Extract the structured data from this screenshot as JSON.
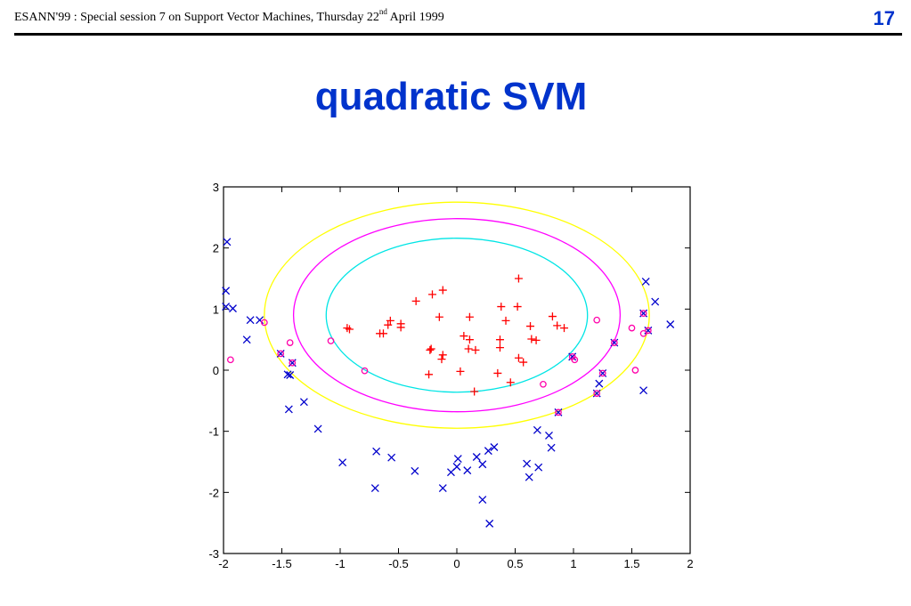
{
  "header": {
    "text_before_sup": "ESANN'99 :  Special session 7 on Support Vector Machines, Thursday 22",
    "sup": "nd",
    "text_after_sup": " April 1999",
    "page_number": "17"
  },
  "slide": {
    "title": "quadratic SVM"
  },
  "colors": {
    "title": "#0033cc",
    "class_pos": "#ff0000",
    "class_neg": "#0000cc",
    "support_vector": "#ff00aa",
    "contour_outer": "#ffff00",
    "contour_middle": "#ff00ff",
    "contour_inner": "#00e5e5"
  },
  "chart_data": {
    "type": "scatter",
    "title": "",
    "xlabel": "",
    "ylabel": "",
    "xlim": [
      -2,
      2
    ],
    "ylim": [
      -3,
      3
    ],
    "xticks": [
      -2,
      -1.5,
      -1,
      -0.5,
      0,
      0.5,
      1,
      1.5,
      2
    ],
    "xtick_labels": [
      "-2",
      "-1.5",
      "-1",
      "-0.5",
      "0",
      "0.5",
      "1",
      "1.5",
      "2"
    ],
    "yticks": [
      -3,
      -2,
      -1,
      0,
      1,
      2,
      3
    ],
    "ytick_labels": [
      "-3",
      "-2",
      "-1",
      "0",
      "1",
      "2",
      "3"
    ],
    "grid": false,
    "series": [
      {
        "marker": "plus",
        "color": "#ff0000",
        "points": [
          [
            0.53,
            1.5
          ],
          [
            -0.12,
            1.31
          ],
          [
            -0.21,
            1.24
          ],
          [
            -0.35,
            1.13
          ],
          [
            0.38,
            1.04
          ],
          [
            0.52,
            1.04
          ],
          [
            -0.15,
            0.87
          ],
          [
            0.11,
            0.87
          ],
          [
            0.42,
            0.81
          ],
          [
            0.82,
            0.88
          ],
          [
            -0.57,
            0.81
          ],
          [
            -0.48,
            0.76
          ],
          [
            -0.59,
            0.74
          ],
          [
            -0.48,
            0.7
          ],
          [
            -0.94,
            0.69
          ],
          [
            -0.92,
            0.67
          ],
          [
            0.63,
            0.72
          ],
          [
            0.86,
            0.73
          ],
          [
            0.92,
            0.69
          ],
          [
            -0.66,
            0.6
          ],
          [
            -0.63,
            0.6
          ],
          [
            0.06,
            0.56
          ],
          [
            0.11,
            0.5
          ],
          [
            0.37,
            0.5
          ],
          [
            0.64,
            0.51
          ],
          [
            0.68,
            0.49
          ],
          [
            -0.23,
            0.33
          ],
          [
            -0.22,
            0.35
          ],
          [
            0.1,
            0.35
          ],
          [
            0.16,
            0.33
          ],
          [
            0.37,
            0.37
          ],
          [
            -0.12,
            0.25
          ],
          [
            -0.13,
            0.18
          ],
          [
            0.53,
            0.2
          ],
          [
            0.57,
            0.13
          ],
          [
            0.03,
            -0.02
          ],
          [
            0.35,
            -0.05
          ],
          [
            -0.24,
            -0.07
          ],
          [
            0.46,
            -0.2
          ],
          [
            0.15,
            -0.35
          ]
        ]
      },
      {
        "marker": "x",
        "color": "#0000cc",
        "points": [
          [
            -1.97,
            2.1
          ],
          [
            -1.98,
            1.3
          ],
          [
            -1.98,
            1.04
          ],
          [
            -1.92,
            1.01
          ],
          [
            -1.77,
            0.82
          ],
          [
            -1.69,
            0.82
          ],
          [
            -1.8,
            0.5
          ],
          [
            -1.51,
            0.27
          ],
          [
            -1.45,
            -0.07
          ],
          [
            -1.43,
            -0.08
          ],
          [
            -1.41,
            0.12
          ],
          [
            -1.44,
            -0.64
          ],
          [
            -1.31,
            -0.52
          ],
          [
            -1.19,
            -0.96
          ],
          [
            -0.98,
            -1.51
          ],
          [
            -0.69,
            -1.33
          ],
          [
            -0.56,
            -1.43
          ],
          [
            -0.7,
            -1.93
          ],
          [
            -0.36,
            -1.65
          ],
          [
            -0.12,
            -1.93
          ],
          [
            -0.05,
            -1.67
          ],
          [
            0.0,
            -1.58
          ],
          [
            0.01,
            -1.45
          ],
          [
            0.09,
            -1.64
          ],
          [
            0.17,
            -1.42
          ],
          [
            0.22,
            -1.54
          ],
          [
            0.27,
            -1.32
          ],
          [
            0.32,
            -1.26
          ],
          [
            0.22,
            -2.12
          ],
          [
            0.28,
            -2.51
          ],
          [
            0.6,
            -1.53
          ],
          [
            0.62,
            -1.75
          ],
          [
            0.7,
            -1.59
          ],
          [
            0.69,
            -0.98
          ],
          [
            0.79,
            -1.07
          ],
          [
            0.81,
            -1.27
          ],
          [
            0.87,
            -0.69
          ],
          [
            0.99,
            0.22
          ],
          [
            1.2,
            -0.38
          ],
          [
            1.22,
            -0.22
          ],
          [
            1.25,
            -0.05
          ],
          [
            1.35,
            0.45
          ],
          [
            1.6,
            -0.33
          ],
          [
            1.6,
            0.93
          ],
          [
            1.64,
            0.65
          ],
          [
            1.62,
            1.45
          ],
          [
            1.7,
            1.12
          ],
          [
            1.83,
            0.75
          ]
        ]
      },
      {
        "marker": "circle",
        "color": "#ff00aa",
        "points": [
          [
            -1.94,
            0.17
          ],
          [
            -1.65,
            0.78
          ],
          [
            -1.43,
            0.45
          ],
          [
            -1.41,
            0.12
          ],
          [
            -1.51,
            0.27
          ],
          [
            -1.08,
            0.48
          ],
          [
            -0.79,
            -0.01
          ],
          [
            0.74,
            -0.23
          ],
          [
            1.01,
            0.17
          ],
          [
            0.87,
            -0.69
          ],
          [
            1.2,
            0.82
          ],
          [
            1.25,
            -0.05
          ],
          [
            1.35,
            0.45
          ],
          [
            1.5,
            0.69
          ],
          [
            1.6,
            0.93
          ],
          [
            1.6,
            0.6
          ],
          [
            1.64,
            0.65
          ],
          [
            1.53,
            0.0
          ],
          [
            1.2,
            -0.38
          ],
          [
            0.99,
            0.22
          ]
        ]
      }
    ],
    "contours": [
      {
        "level": "outer",
        "color": "#ffff00",
        "center": [
          0.0,
          0.9
        ],
        "rx": 1.65,
        "ry": 1.85
      },
      {
        "level": "middle",
        "color": "#ff00ff",
        "center": [
          0.0,
          0.9
        ],
        "rx": 1.4,
        "ry": 1.58
      },
      {
        "level": "inner",
        "color": "#00e5e5",
        "center": [
          0.0,
          0.9
        ],
        "rx": 1.12,
        "ry": 1.26
      }
    ]
  }
}
